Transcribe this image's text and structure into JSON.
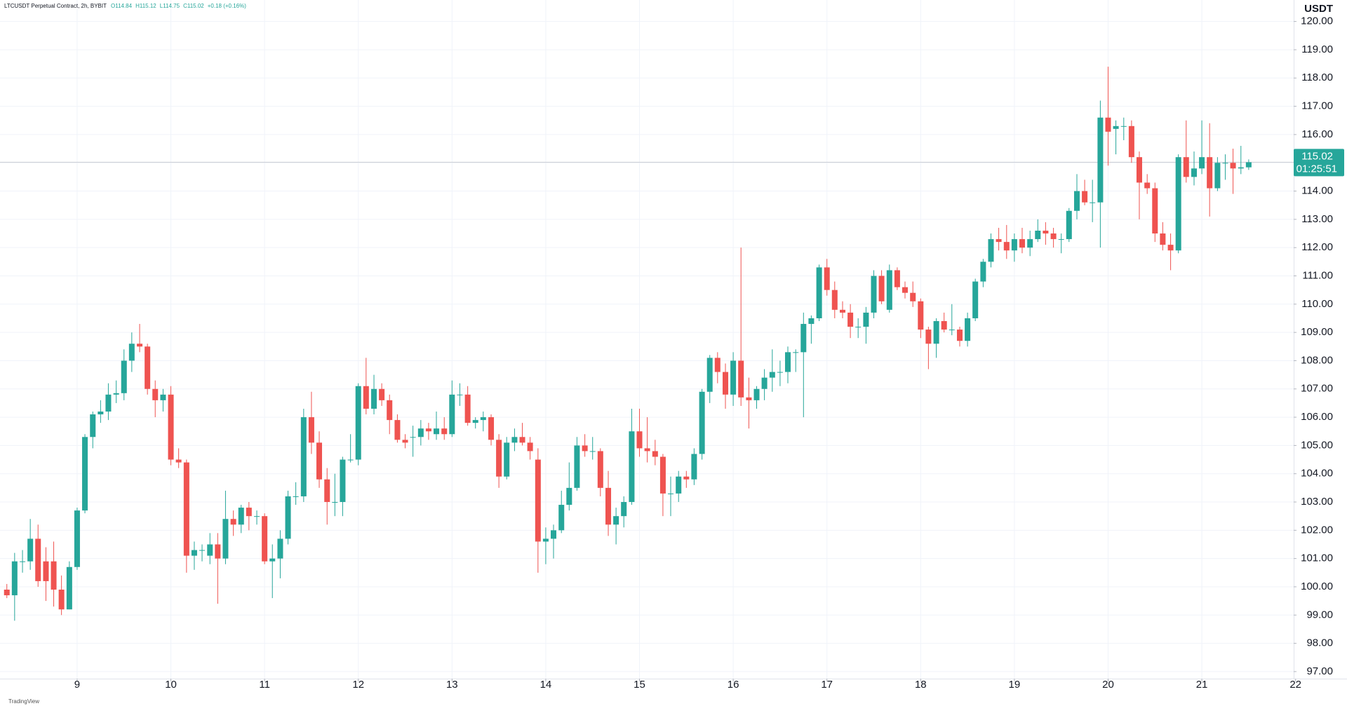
{
  "chart_data": {
    "type": "candlestick",
    "title": "LTCUSDT Perpetual Contract, 2h, BYBIT",
    "header_values": [
      "O114.84",
      "H115.12",
      "L114.75",
      "C115.02",
      "+0.18 (+0.16%)"
    ],
    "y_axis_label": "USDT",
    "footer": "TradingView",
    "last_price": 115.02,
    "countdown": "01:25:51",
    "up_color": "#26a69a",
    "down_color": "#ef5350",
    "grid": true,
    "xlim": [
      8.177,
      21.98
    ],
    "ylim": [
      96.75,
      120.76
    ],
    "xticks": [
      9,
      10,
      11,
      12,
      13,
      14,
      15,
      16,
      17,
      18,
      19,
      20,
      21,
      22
    ],
    "yticks": [
      {
        "value": 97,
        "label": "97.00"
      },
      {
        "value": 98,
        "label": "98.00"
      },
      {
        "value": 99,
        "label": "99.00"
      },
      {
        "value": 100,
        "label": "100.00"
      },
      {
        "value": 101,
        "label": "101.00"
      },
      {
        "value": 102,
        "label": "102.00"
      },
      {
        "value": 103,
        "label": "103.00"
      },
      {
        "value": 104,
        "label": "104.00"
      },
      {
        "value": 105,
        "label": "105.00"
      },
      {
        "value": 106,
        "label": "106.00"
      },
      {
        "value": 107,
        "label": "107.00"
      },
      {
        "value": 108,
        "label": "108.00"
      },
      {
        "value": 109,
        "label": "109.00"
      },
      {
        "value": 110,
        "label": "110.00"
      },
      {
        "value": 111,
        "label": "111.00"
      },
      {
        "value": 112,
        "label": "112.00"
      },
      {
        "value": 113,
        "label": "113.00"
      },
      {
        "value": 114,
        "label": "114.00"
      },
      {
        "value": 115,
        "label": "115.00"
      },
      {
        "value": 116,
        "label": "116.00"
      },
      {
        "value": 117,
        "label": "117.00"
      },
      {
        "value": 118,
        "label": "118.00"
      },
      {
        "value": 119,
        "label": "119.00"
      },
      {
        "value": 120,
        "label": "120.00"
      }
    ],
    "x": [
      8.25,
      8.333,
      8.417,
      8.5,
      8.583,
      8.667,
      8.75,
      8.833,
      8.917,
      9,
      9.083,
      9.167,
      9.25,
      9.333,
      9.417,
      9.5,
      9.583,
      9.667,
      9.75,
      9.833,
      9.917,
      10,
      10.083,
      10.167,
      10.25,
      10.333,
      10.417,
      10.5,
      10.583,
      10.667,
      10.75,
      10.833,
      10.917,
      11,
      11.083,
      11.167,
      11.25,
      11.333,
      11.417,
      11.5,
      11.583,
      11.667,
      11.75,
      11.833,
      11.917,
      12,
      12.083,
      12.167,
      12.25,
      12.333,
      12.417,
      12.5,
      12.583,
      12.667,
      12.75,
      12.833,
      12.917,
      13,
      13.083,
      13.167,
      13.25,
      13.333,
      13.417,
      13.5,
      13.583,
      13.667,
      13.75,
      13.833,
      13.917,
      14,
      14.083,
      14.167,
      14.25,
      14.333,
      14.417,
      14.5,
      14.583,
      14.667,
      14.75,
      14.833,
      14.917,
      15,
      15.083,
      15.167,
      15.25,
      15.333,
      15.417,
      15.5,
      15.583,
      15.667,
      15.75,
      15.833,
      15.917,
      16,
      16.083,
      16.167,
      16.25,
      16.333,
      16.417,
      16.5,
      16.583,
      16.667,
      16.75,
      16.833,
      16.917,
      17,
      17.083,
      17.167,
      17.25,
      17.333,
      17.417,
      17.5,
      17.583,
      17.667,
      17.75,
      17.833,
      17.917,
      18,
      18.083,
      18.167,
      18.25,
      18.333,
      18.417,
      18.5,
      18.583,
      18.667,
      18.75,
      18.833,
      18.917,
      19,
      19.083,
      19.167,
      19.25,
      19.333,
      19.417,
      19.5,
      19.583,
      19.667,
      19.75,
      19.833,
      19.917,
      20,
      20.083,
      20.167,
      20.25,
      20.333,
      20.417,
      20.5,
      20.583,
      20.667,
      20.75,
      20.833,
      20.917,
      21,
      21.083,
      21.167,
      21.25,
      21.333,
      21.417,
      21.5
    ],
    "open": [
      99.9,
      99.7,
      100.9,
      100.9,
      101.7,
      100.9,
      100.9,
      99.9,
      99.2,
      100.7,
      102.7,
      105.3,
      106.1,
      106.2,
      106.8,
      106.85,
      108.0,
      108.6,
      108.5,
      107.0,
      106.6,
      106.8,
      104.5,
      104.4,
      101.1,
      101.3,
      101.1,
      101.5,
      101.0,
      102.4,
      102.2,
      102.8,
      102.5,
      102.5,
      100.9,
      101.0,
      101.7,
      103.2,
      103.2,
      106.0,
      105.1,
      103.8,
      103.0,
      103.0,
      104.5,
      104.5,
      107.1,
      106.3,
      107.0,
      106.6,
      105.9,
      105.2,
      105.3,
      105.3,
      105.6,
      105.4,
      105.6,
      105.4,
      106.8,
      106.8,
      105.8,
      105.9,
      106.0,
      105.2,
      103.9,
      105.1,
      105.3,
      105.1,
      104.5,
      101.6,
      101.7,
      102.0,
      102.9,
      103.5,
      105.0,
      104.8,
      104.8,
      103.5,
      102.2,
      102.5,
      103.0,
      105.5,
      104.9,
      104.8,
      104.6,
      103.3,
      103.3,
      103.9,
      103.8,
      104.7,
      106.9,
      108.1,
      107.6,
      106.8,
      108.0,
      106.7,
      106.6,
      107.0,
      107.4,
      107.6,
      107.6,
      108.3,
      108.3,
      109.3,
      109.5,
      111.3,
      110.5,
      109.8,
      109.7,
      109.2,
      109.2,
      109.7,
      111.0,
      109.8,
      111.2,
      110.6,
      110.4,
      110.1,
      109.1,
      108.6,
      109.4,
      109.1,
      109.1,
      108.7,
      109.5,
      110.8,
      111.5,
      112.3,
      112.2,
      111.9,
      112.3,
      112.0,
      112.3,
      112.6,
      112.5,
      112.3,
      112.3,
      113.3,
      114.0,
      113.6,
      113.6,
      116.6,
      116.2,
      116.3,
      116.3,
      115.2,
      114.3,
      114.1,
      112.5,
      112.1,
      111.9,
      115.2,
      114.5,
      114.8,
      115.2,
      114.1,
      115.0,
      115.0,
      114.8,
      114.84
    ],
    "high": [
      100.1,
      101.2,
      101.3,
      102.4,
      102.2,
      101.4,
      101.6,
      100.4,
      100.9,
      102.8,
      105.4,
      106.2,
      106.6,
      107.2,
      107.3,
      108.4,
      109.0,
      109.3,
      108.6,
      107.3,
      107.0,
      107.1,
      104.9,
      104.5,
      101.6,
      101.5,
      101.9,
      101.9,
      103.4,
      102.7,
      102.9,
      103.0,
      102.7,
      102.6,
      101.5,
      102.0,
      103.4,
      103.7,
      106.3,
      106.9,
      105.5,
      104.2,
      104.0,
      104.6,
      105.4,
      107.2,
      108.1,
      107.5,
      107.2,
      106.8,
      106.1,
      105.4,
      105.7,
      105.9,
      105.8,
      106.2,
      106.0,
      107.3,
      107.2,
      107.1,
      106.0,
      106.2,
      106.1,
      105.4,
      105.3,
      105.6,
      105.8,
      105.3,
      104.9,
      102.1,
      102.2,
      103.4,
      104.4,
      105.3,
      105.4,
      105.3,
      104.9,
      104.1,
      102.8,
      103.2,
      106.3,
      106.3,
      106.0,
      105.2,
      104.7,
      103.9,
      104.1,
      104.1,
      104.9,
      107.0,
      108.2,
      108.3,
      107.9,
      108.3,
      112.0,
      107.4,
      107.1,
      107.7,
      108.4,
      108.0,
      108.5,
      108.4,
      109.7,
      109.6,
      111.4,
      111.6,
      110.8,
      110.1,
      110.0,
      109.5,
      109.9,
      111.2,
      111.2,
      111.4,
      111.3,
      110.8,
      110.8,
      110.2,
      109.2,
      109.5,
      109.7,
      110.0,
      109.2,
      109.7,
      110.9,
      111.6,
      112.5,
      112.7,
      112.8,
      112.5,
      112.7,
      112.6,
      113.0,
      112.9,
      112.7,
      112.5,
      113.4,
      114.6,
      114.4,
      114.4,
      117.2,
      118.4,
      116.5,
      116.6,
      116.5,
      115.4,
      114.6,
      114.3,
      112.9,
      112.5,
      115.3,
      116.5,
      115.4,
      116.5,
      116.4,
      115.2,
      115.3,
      115.5,
      115.6,
      115.12
    ],
    "low": [
      99.6,
      98.8,
      100.5,
      100.6,
      100.0,
      99.5,
      99.3,
      99.0,
      99.2,
      100.6,
      102.6,
      104.9,
      105.8,
      105.9,
      106.5,
      106.6,
      107.6,
      108.3,
      106.8,
      106.0,
      106.2,
      104.3,
      104.2,
      100.5,
      100.6,
      100.9,
      100.8,
      99.4,
      100.8,
      101.8,
      101.9,
      102.0,
      102.2,
      100.8,
      99.6,
      100.3,
      101.5,
      102.9,
      103.0,
      104.7,
      103.5,
      102.2,
      102.5,
      102.5,
      104.4,
      104.3,
      106.1,
      106.1,
      106.4,
      105.4,
      105.1,
      104.9,
      104.6,
      105.0,
      105.2,
      105.2,
      105.2,
      105.3,
      106.4,
      105.7,
      105.6,
      105.5,
      105.0,
      103.5,
      103.8,
      104.8,
      105.0,
      104.5,
      100.5,
      100.8,
      101.0,
      101.9,
      102.7,
      103.4,
      104.6,
      104.5,
      103.2,
      101.8,
      101.5,
      102.1,
      102.9,
      104.6,
      104.4,
      104.3,
      102.5,
      102.5,
      103.0,
      103.5,
      103.6,
      104.5,
      106.5,
      107.2,
      106.3,
      106.4,
      106.4,
      105.6,
      106.3,
      106.6,
      106.9,
      107.1,
      107.2,
      107.6,
      106.0,
      108.6,
      109.4,
      110.3,
      109.5,
      109.5,
      108.8,
      108.8,
      108.6,
      109.5,
      110.0,
      109.7,
      110.5,
      110.2,
      109.9,
      108.8,
      107.7,
      108.1,
      109.0,
      108.9,
      108.5,
      108.5,
      109.4,
      110.6,
      111.3,
      111.9,
      111.6,
      111.5,
      111.8,
      111.7,
      112.2,
      112.1,
      112.0,
      111.8,
      112.2,
      113.0,
      113.5,
      112.9,
      112.0,
      114.9,
      115.3,
      115.8,
      115.0,
      113.0,
      113.9,
      112.2,
      111.9,
      111.2,
      111.8,
      114.3,
      114.2,
      114.6,
      113.1,
      114.0,
      114.4,
      113.9,
      114.6,
      114.75
    ],
    "close": [
      99.7,
      100.9,
      100.9,
      101.7,
      100.2,
      100.2,
      99.9,
      99.2,
      100.7,
      102.7,
      105.3,
      106.1,
      106.2,
      106.8,
      106.85,
      108.0,
      108.6,
      108.5,
      107.0,
      106.6,
      106.8,
      104.5,
      104.4,
      101.1,
      101.3,
      101.3,
      101.5,
      101.0,
      102.4,
      102.2,
      102.8,
      102.5,
      102.5,
      100.9,
      101.0,
      101.7,
      103.2,
      103.2,
      106.0,
      105.1,
      103.8,
      103.0,
      103.0,
      104.5,
      104.5,
      107.1,
      106.3,
      107.0,
      106.6,
      105.9,
      105.2,
      105.1,
      105.3,
      105.6,
      105.5,
      105.6,
      105.4,
      106.8,
      106.8,
      105.8,
      105.9,
      106.0,
      105.2,
      103.9,
      105.1,
      105.3,
      105.1,
      104.8,
      101.6,
      101.7,
      102.0,
      102.9,
      103.5,
      105.0,
      104.8,
      104.8,
      103.5,
      102.2,
      102.5,
      103.0,
      105.5,
      104.9,
      104.8,
      104.6,
      103.3,
      103.3,
      103.9,
      103.8,
      104.7,
      106.9,
      108.1,
      107.6,
      106.8,
      108.0,
      106.7,
      106.6,
      107.0,
      107.4,
      107.6,
      107.6,
      108.3,
      108.3,
      109.3,
      109.5,
      111.3,
      110.5,
      109.8,
      109.7,
      109.2,
      109.2,
      109.7,
      111.0,
      110.1,
      111.2,
      110.6,
      110.4,
      110.1,
      109.1,
      108.6,
      109.4,
      109.1,
      109.1,
      108.7,
      109.5,
      110.8,
      111.5,
      112.3,
      112.2,
      111.9,
      112.3,
      112.0,
      112.3,
      112.6,
      112.5,
      112.3,
      112.3,
      113.3,
      114.0,
      113.6,
      113.6,
      116.6,
      116.1,
      116.3,
      116.3,
      115.2,
      114.3,
      114.1,
      112.5,
      112.1,
      111.9,
      115.2,
      114.5,
      114.8,
      115.2,
      114.1,
      115.0,
      115.0,
      114.8,
      114.84,
      115.02
    ]
  }
}
